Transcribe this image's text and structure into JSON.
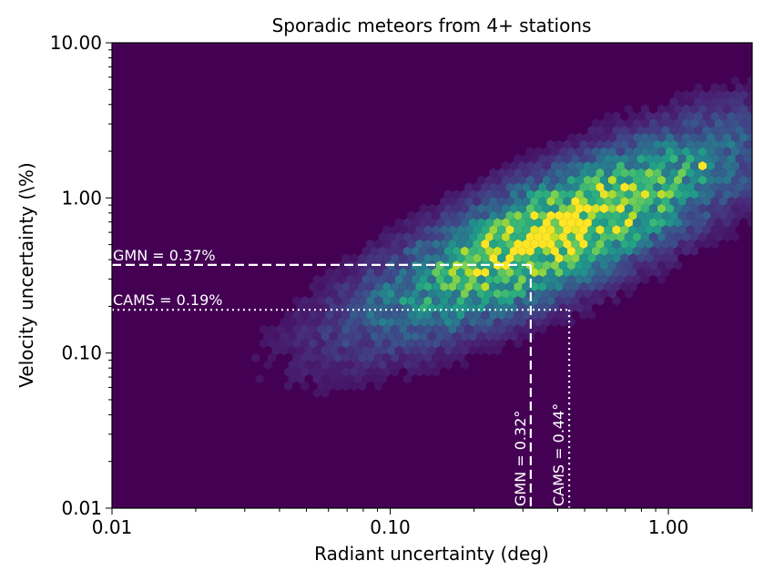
{
  "chart_data": {
    "type": "heatmap",
    "title": "Sporadic meteors from 4+ stations",
    "xlabel": "Radiant uncertainty (deg)",
    "ylabel": "Velocity uncertainty (\\%)",
    "xscale": "log",
    "yscale": "log",
    "xlim": [
      0.01,
      2.0
    ],
    "ylim": [
      0.01,
      10.0
    ],
    "xticks": [
      {
        "value": 0.01,
        "label": "0.01"
      },
      {
        "value": 0.1,
        "label": "0.10"
      },
      {
        "value": 1.0,
        "label": "1.00"
      }
    ],
    "yticks": [
      {
        "value": 0.01,
        "label": "0.01"
      },
      {
        "value": 0.1,
        "label": "0.10"
      },
      {
        "value": 1.0,
        "label": "1.00"
      },
      {
        "value": 10.0,
        "label": "10.00"
      }
    ],
    "grid": false,
    "colormap": "viridis",
    "background_color": "#440154",
    "density_peak": {
      "x": 0.4,
      "y": 0.6
    },
    "reference_lines": [
      {
        "label": "GMN = 0.37%",
        "axis": "y",
        "value": 0.37,
        "style": "dashed",
        "color": "#ffffff"
      },
      {
        "label": "CAMS = 0.19%",
        "axis": "y",
        "value": 0.19,
        "style": "dotted",
        "color": "#ffffff"
      },
      {
        "label": "GMN = 0.32°",
        "axis": "x",
        "value": 0.32,
        "style": "dashed",
        "color": "#ffffff"
      },
      {
        "label": "CAMS = 0.44°",
        "axis": "x",
        "value": 0.44,
        "style": "dotted",
        "color": "#ffffff"
      }
    ]
  }
}
